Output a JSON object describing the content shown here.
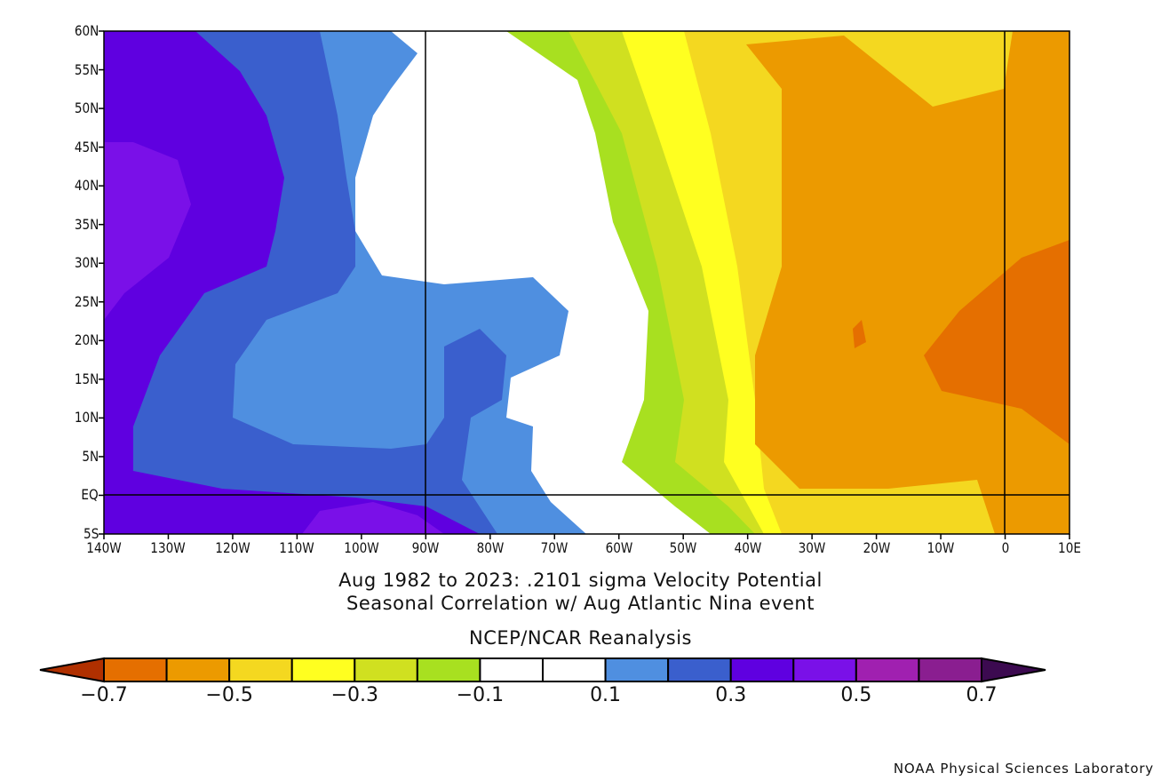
{
  "chart_data": {
    "type": "heatmap",
    "title": "Aug 1982 to 2023: .2101 sigma Velocity Potential",
    "subtitle": "Seasonal Correlation w/ Aug Atlantic Nina event",
    "source_label": "NCEP/NCAR Reanalysis",
    "lon_range": [
      -140,
      10
    ],
    "lat_range": [
      -5,
      60
    ],
    "lat_ticks": [
      "60N",
      "55N",
      "50N",
      "45N",
      "40N",
      "35N",
      "30N",
      "25N",
      "20N",
      "15N",
      "10N",
      "5N",
      "EQ",
      "5S"
    ],
    "lon_ticks": [
      "140W",
      "130W",
      "120W",
      "110W",
      "100W",
      "90W",
      "80W",
      "70W",
      "60W",
      "50W",
      "40W",
      "30W",
      "20W",
      "10W",
      "0",
      "10E"
    ],
    "grid_lines": [
      "90W",
      "0",
      "EQ"
    ],
    "colorbar": {
      "levels": [
        -0.7,
        -0.6,
        -0.5,
        -0.4,
        -0.3,
        -0.2,
        -0.1,
        0,
        0.1,
        0.2,
        0.3,
        0.4,
        0.5,
        0.6,
        0.7
      ],
      "labels": [
        "-0.7",
        "-0.5",
        "-0.3",
        "-0.1",
        "0.1",
        "0.3",
        "0.5",
        "0.7"
      ],
      "under_color": "#b03000",
      "over_color": "#3c0a50",
      "colors": [
        "#e56f00",
        "#ec9a00",
        "#f4d820",
        "#ffff20",
        "#d0e020",
        "#a8e020",
        "#ffffff",
        "#ffffff",
        "#4f8fe0",
        "#3a5fcd",
        "#5f00e0",
        "#7a10e8",
        "#a020b0",
        "#8a1e90"
      ]
    },
    "summary": "Negative correlations (orange/yellow) over eastern Atlantic and West Africa; positive correlations (blue/purple) over eastern Pacific and western North America"
  },
  "footer": {
    "credit": "NOAA Physical Sciences Laboratory"
  }
}
